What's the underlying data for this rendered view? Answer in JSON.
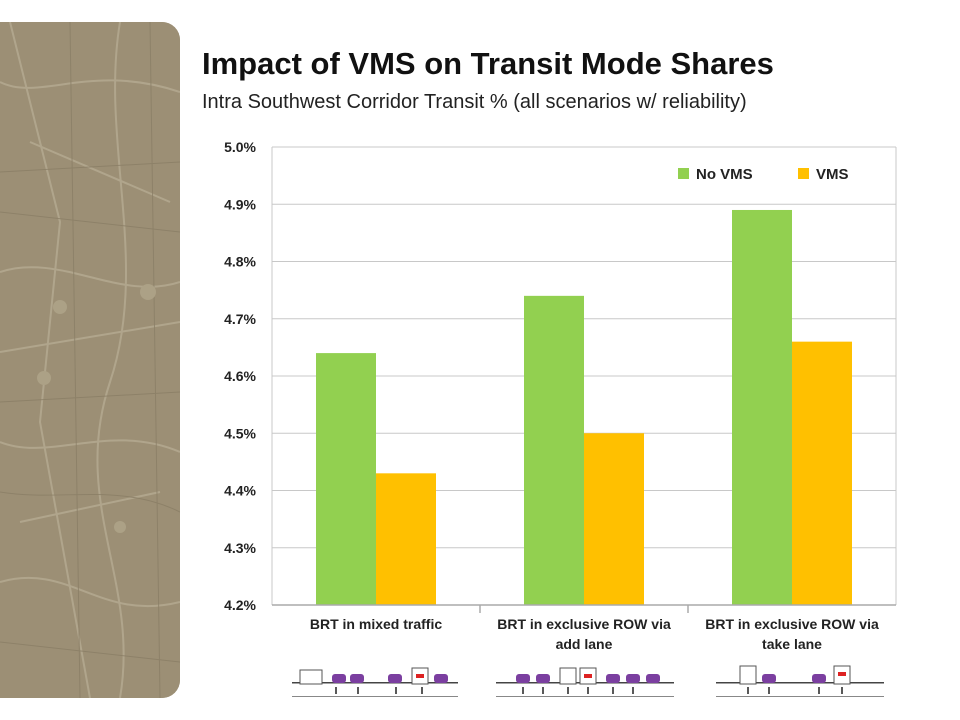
{
  "page": {
    "title": "Impact of VMS on Transit Mode Shares",
    "subtitle": "Intra Southwest Corridor Transit % (all scenarios w/ reliability)"
  },
  "chart_data": {
    "type": "bar",
    "categories": [
      [
        "BRT in mixed traffic"
      ],
      [
        "BRT in exclusive ROW via",
        "add lane"
      ],
      [
        "BRT in exclusive ROW via",
        "take lane"
      ]
    ],
    "series": [
      {
        "name": "No VMS",
        "color": "#92d050",
        "values": [
          4.64,
          4.74,
          4.89
        ]
      },
      {
        "name": "VMS",
        "color": "#ffc000",
        "values": [
          4.43,
          4.5,
          4.66
        ]
      }
    ],
    "ylim": [
      4.2,
      5.0
    ],
    "yticks": [
      "4.2%",
      "4.3%",
      "4.4%",
      "4.5%",
      "4.6%",
      "4.7%",
      "4.8%",
      "4.9%",
      "5.0%"
    ],
    "ytick_values": [
      4.2,
      4.3,
      4.4,
      4.5,
      4.6,
      4.7,
      4.8,
      4.9,
      5.0
    ],
    "grid": true,
    "legend_position": "top-right"
  },
  "decor": {
    "background_map": "street-map-image",
    "cross_section_icons": [
      "roadway-cross-section-mixed",
      "roadway-cross-section-add-lane",
      "roadway-cross-section-take-lane"
    ]
  }
}
